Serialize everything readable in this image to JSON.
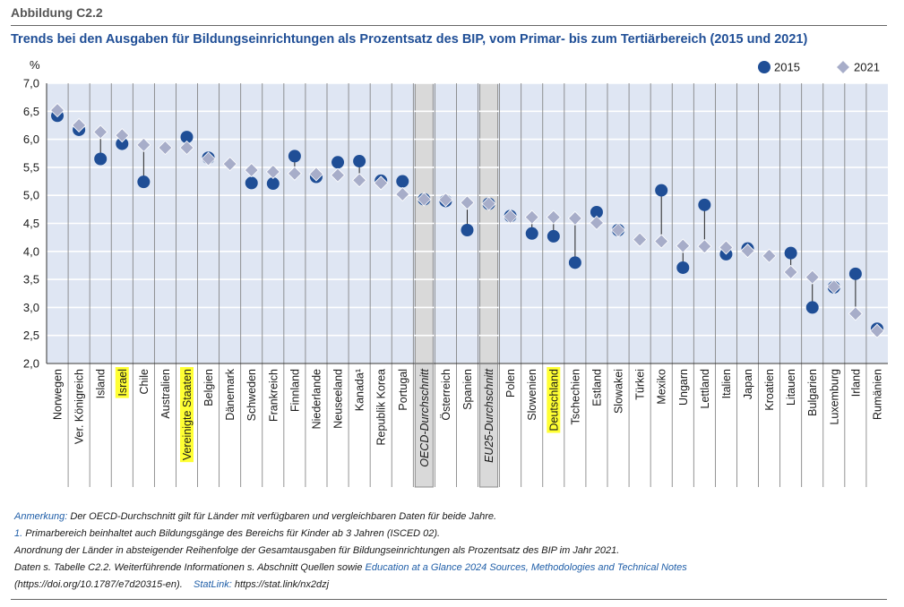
{
  "header": {
    "figure_label": "Abbildung C2.2",
    "title": "Trends bei den Ausgaben für Bildungseinrichtungen als Prozentsatz des BIP, vom Primar- bis zum Tertiärbereich (2015 und 2021)"
  },
  "colors": {
    "series_2015": "#1f4e96",
    "series_2021": "#a7adc9",
    "title": "#1f4e96",
    "highlight": "#ffff33",
    "average_band": "#d9d9d9",
    "plot_background": "#dfe6f3"
  },
  "chart_data": {
    "type": "scatter",
    "ylabel": "%",
    "ylim": [
      2.0,
      7.0
    ],
    "yticks": [
      "2,0",
      "2,5",
      "3,0",
      "3,5",
      "4,0",
      "4,5",
      "5,0",
      "5,5",
      "6,0",
      "6,5",
      "7,0"
    ],
    "grid": true,
    "legend_position": "top-right",
    "categories": [
      "Norwegen",
      "Ver. Königreich",
      "Island",
      "Israel",
      "Chile",
      "Australien",
      "Vereinigte Staaten",
      "Belgien",
      "Dänemark",
      "Schweden",
      "Frankreich",
      "Finnland",
      "Niederlande",
      "Neuseeland",
      "Kanada¹",
      "Republik Korea",
      "Portugal",
      "OECD-Durchschnitt",
      "Österreich",
      "Spanien",
      "EU25-Durchschnitt",
      "Polen",
      "Slowenien",
      "Deutschland",
      "Tschechien",
      "Estland",
      "Slowakei",
      "Türkei",
      "Mexiko",
      "Ungarn",
      "Lettland",
      "Italien",
      "Japan",
      "Kroatien",
      "Litauen",
      "Bulgarien",
      "Luxemburg",
      "Irland",
      "Rumänien"
    ],
    "highlighted": [
      "Israel",
      "Vereinigte Staaten",
      "Deutschland"
    ],
    "averages": [
      "OECD-Durchschnitt",
      "EU25-Durchschnitt"
    ],
    "series": [
      {
        "name": "2015",
        "marker": "circle",
        "values": [
          6.42,
          6.17,
          5.65,
          5.92,
          5.24,
          null,
          6.04,
          5.67,
          null,
          5.22,
          5.21,
          5.7,
          5.33,
          5.59,
          5.61,
          5.26,
          5.25,
          4.93,
          4.9,
          4.38,
          4.85,
          4.63,
          4.32,
          4.27,
          3.8,
          4.7,
          4.38,
          null,
          5.09,
          3.71,
          4.83,
          3.95,
          4.05,
          null,
          3.97,
          3.0,
          3.36,
          3.6,
          2.62
        ]
      },
      {
        "name": "2021",
        "marker": "diamond",
        "values": [
          6.52,
          6.25,
          6.13,
          6.07,
          5.9,
          5.85,
          5.85,
          5.65,
          5.56,
          5.45,
          5.42,
          5.39,
          5.38,
          5.36,
          5.27,
          5.22,
          5.02,
          4.93,
          4.92,
          4.87,
          4.85,
          4.62,
          4.61,
          4.61,
          4.59,
          4.51,
          4.38,
          4.21,
          4.18,
          4.1,
          4.09,
          4.07,
          4.01,
          3.92,
          3.63,
          3.54,
          3.37,
          2.89,
          2.58
        ]
      }
    ]
  },
  "notes": {
    "anmerkung_label": "Anmerkung:",
    "anmerkung_text": " Der OECD-Durchschnitt gilt für Länder mit verfügbaren und vergleichbaren Daten für beide Jahre.",
    "footnote_num": "1.",
    "footnote_text": " Primarbereich beinhaltet auch Bildungsgänge des Bereichs für Kinder ab 3 Jahren (ISCED 02).",
    "order_text": "Anordnung der Länder in absteigender Reihenfolge der Gesamtausgaben für Bildungseinrichtungen als Prozentsatz des BIP im Jahr 2021.",
    "source_prefix": "Daten s. Tabelle C2.2. Weiterführende Informationen s. Abschnitt Quellen sowie ",
    "source_link": "Education at a Glance 2024 Sources, Methodologies and Technical Notes",
    "doi_text": "(https://doi.org/10.1787/e7d20315-en).",
    "statlink_label": "StatLink:",
    "statlink_url": " https://stat.link/nx2dzj"
  }
}
